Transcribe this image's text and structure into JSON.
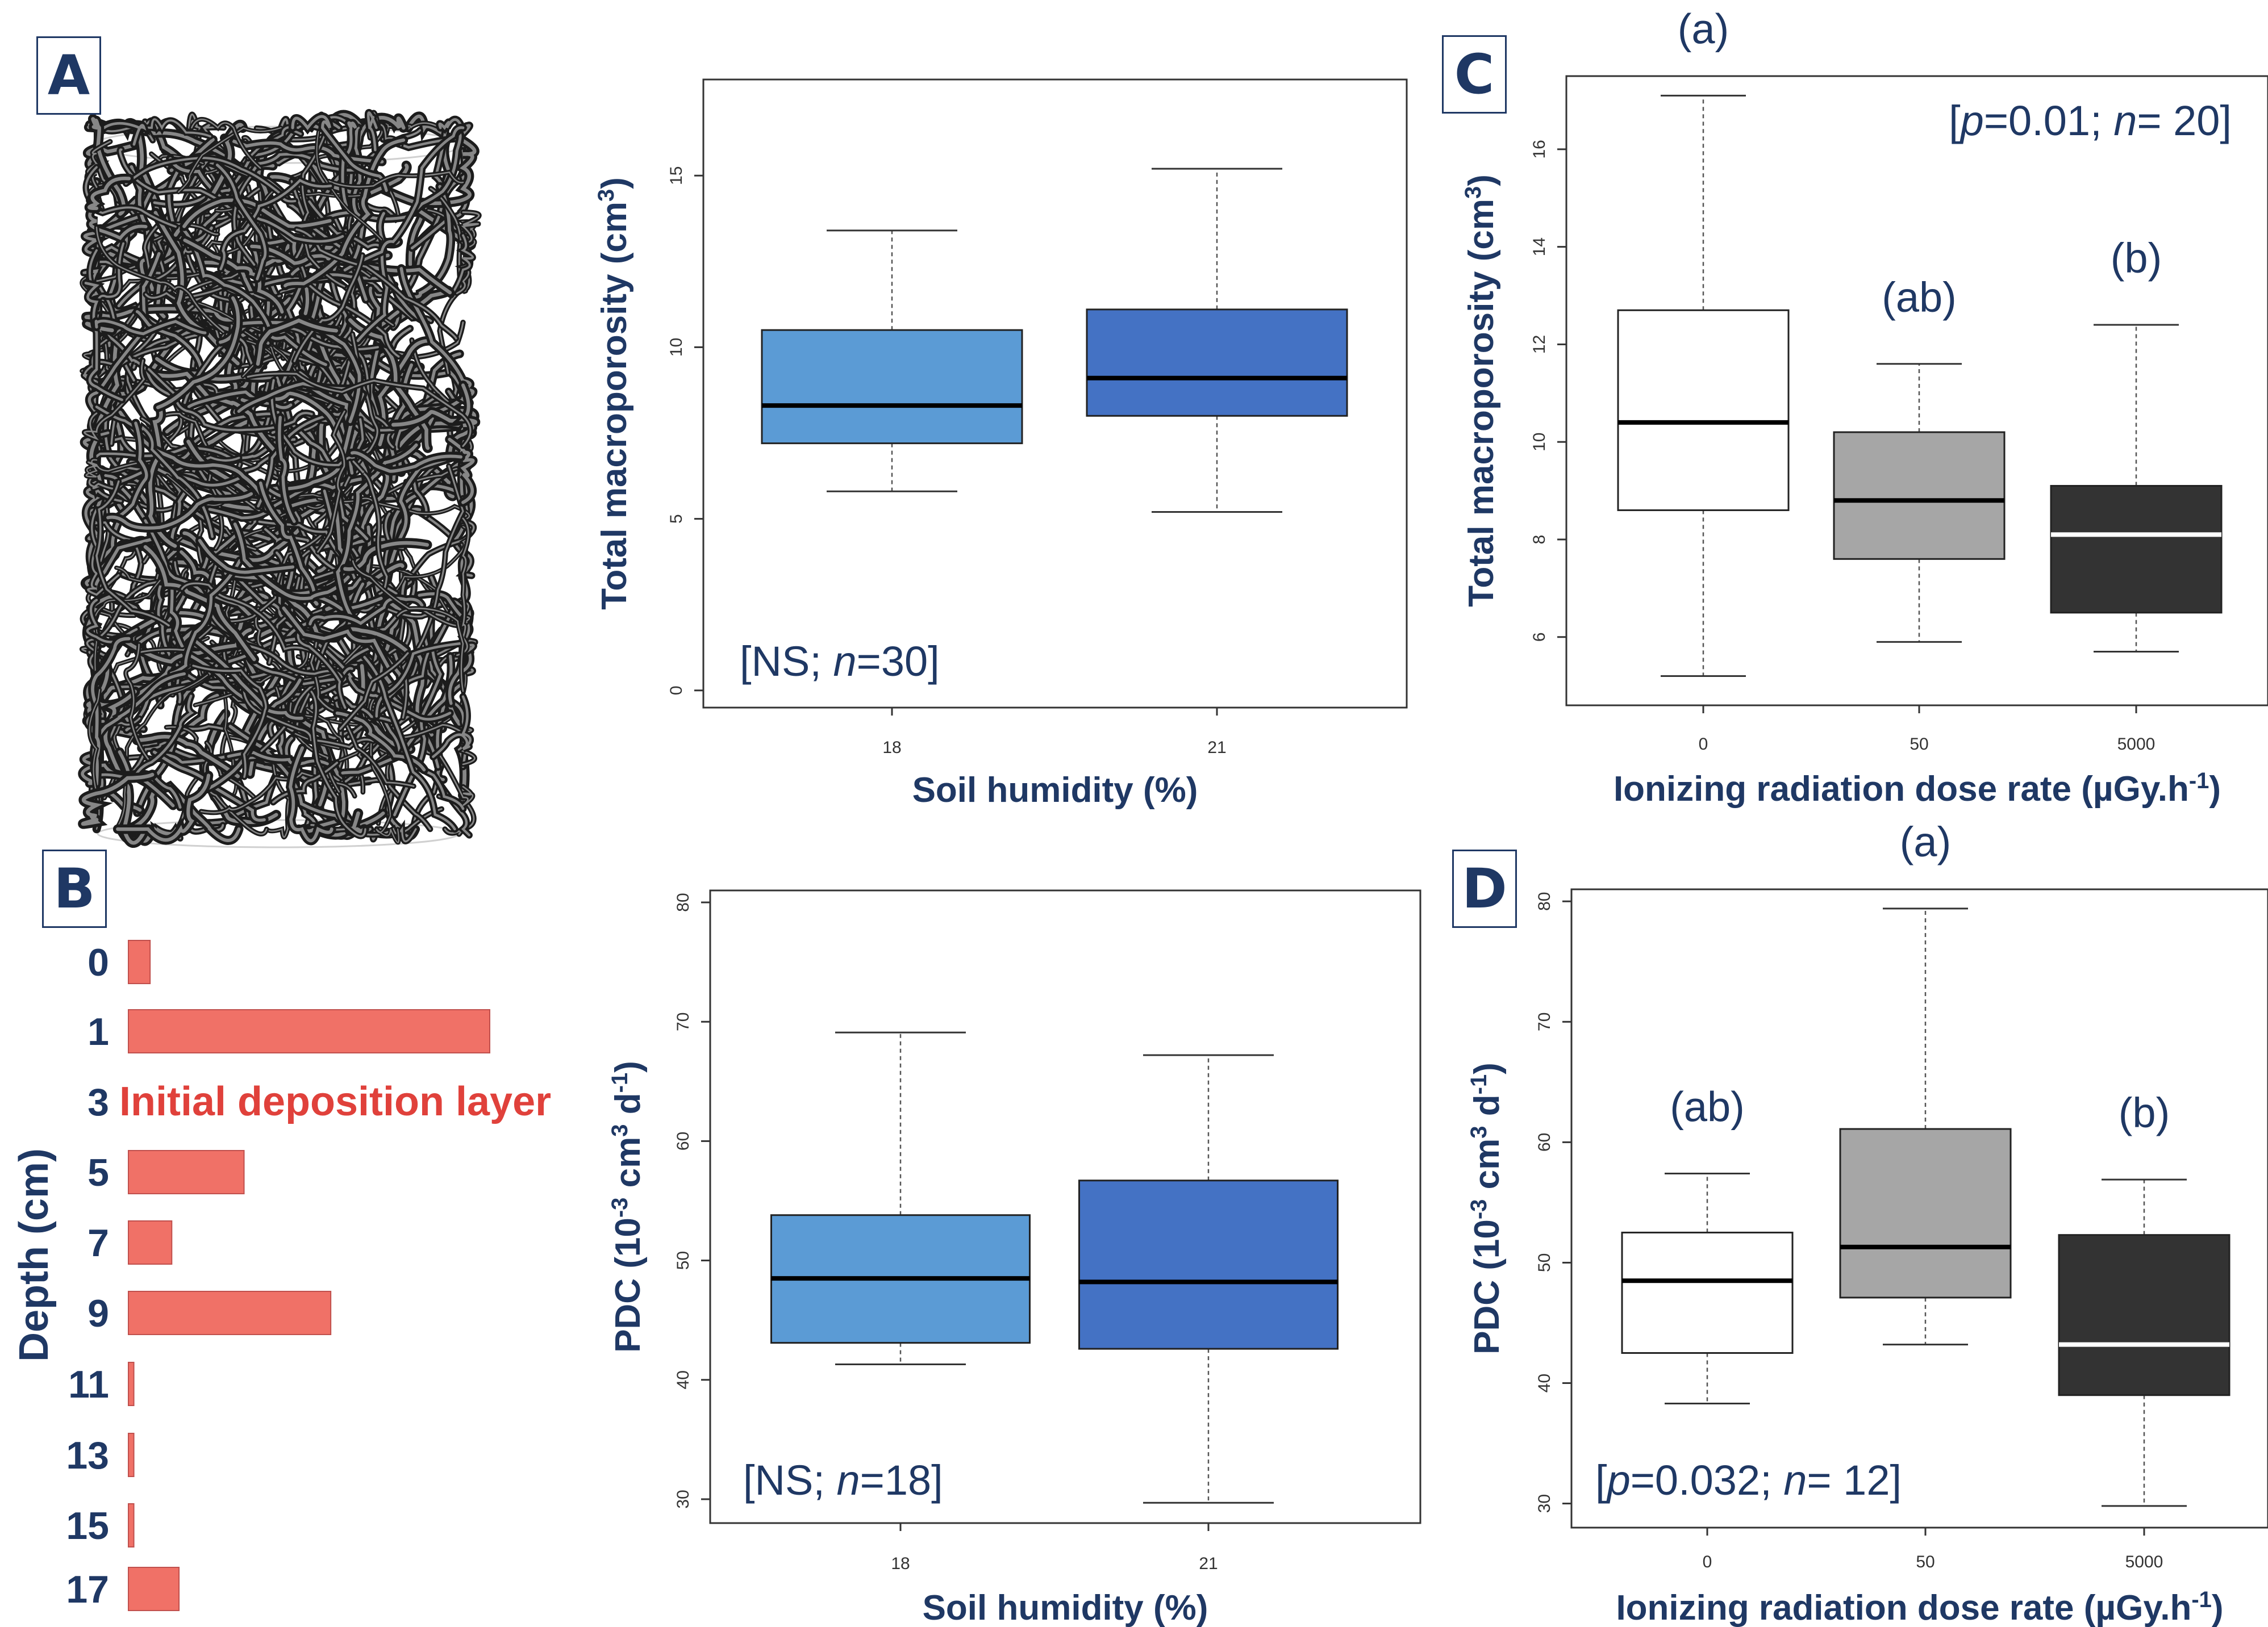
{
  "panel_labels": {
    "a": "A",
    "b": "B",
    "c": "C",
    "d": "D"
  },
  "colors": {
    "navy": "#1f3864",
    "bar_red": "#f07167",
    "deposition_red": "#e0413b",
    "humidity_18": "#5b9bd5",
    "humidity_21": "#4472c4",
    "dose_0": "#ffffff",
    "dose_50": "#a6a6a6",
    "dose_5000": "#333333"
  },
  "chart_data": [
    {
      "id": "depth-profile",
      "type": "bar",
      "orientation": "horizontal",
      "ylabel": "Depth (cm)",
      "categories": [
        "0",
        "1",
        "3",
        "5",
        "7",
        "9",
        "11",
        "13",
        "15",
        "17"
      ],
      "values": [
        0.6,
        10,
        null,
        3.2,
        1.2,
        5.6,
        0.15,
        0.15,
        0.15,
        1.4
      ],
      "annotation": "Initial deposition layer",
      "annotation_category": "3"
    },
    {
      "id": "macroporosity-humidity",
      "type": "box",
      "xlabel": "Soil humidity (%)",
      "ylabel_main": "Total macroporosity (cm",
      "ylabel_sup": "3",
      "ylabel_end": ")",
      "ylim": [
        -0.5,
        17.8
      ],
      "yticks": [
        0,
        5,
        10,
        15
      ],
      "categories": [
        "18",
        "21"
      ],
      "boxes": [
        {
          "label": "18",
          "min": 5.8,
          "q1": 7.2,
          "median": 8.3,
          "q3": 10.5,
          "max": 13.4
        },
        {
          "label": "21",
          "min": 5.2,
          "q1": 8.0,
          "median": 9.1,
          "q3": 11.1,
          "max": 15.2
        }
      ],
      "stat_text": "[NS; n=30]"
    },
    {
      "id": "macroporosity-dose",
      "type": "box",
      "xlabel": "Ionizing radiation dose rate (µGy.h-1)",
      "ylabel_main": "Total macroporosity (cm",
      "ylabel_sup": "3",
      "ylabel_end": ")",
      "ylim": [
        4.6,
        17.5
      ],
      "yticks": [
        6,
        8,
        10,
        12,
        14,
        16
      ],
      "categories": [
        "0",
        "50",
        "5000"
      ],
      "boxes": [
        {
          "label": "0",
          "min": 5.2,
          "q1": 8.6,
          "median": 10.4,
          "q3": 12.7,
          "max": 17.1,
          "letter": "(a)"
        },
        {
          "label": "50",
          "min": 5.9,
          "q1": 7.6,
          "median": 8.8,
          "q3": 10.2,
          "max": 11.6,
          "letter": "(ab)"
        },
        {
          "label": "5000",
          "min": 5.7,
          "q1": 6.5,
          "median": 8.1,
          "q3": 9.1,
          "max": 12.4,
          "letter": "(b)"
        }
      ],
      "stat_text": "[p=0.01; n= 20]"
    },
    {
      "id": "pdc-humidity",
      "type": "box",
      "xlabel": "Soil humidity (%)",
      "ylabel_main": "PDC (10",
      "ylabel_sup": "-3",
      "ylabel_mid": " cm",
      "ylabel_sup2": "3",
      "ylabel_mid2": " d",
      "ylabel_sup3": "-1",
      "ylabel_end": ")",
      "ylim": [
        28,
        81
      ],
      "yticks": [
        30,
        40,
        50,
        60,
        70,
        80
      ],
      "categories": [
        "18",
        "21"
      ],
      "boxes": [
        {
          "label": "18",
          "min": 41.3,
          "q1": 43.1,
          "median": 48.5,
          "q3": 53.8,
          "max": 69.1
        },
        {
          "label": "21",
          "min": 29.7,
          "q1": 42.6,
          "median": 48.2,
          "q3": 56.7,
          "max": 67.2
        }
      ],
      "stat_text": "[NS; n=18]"
    },
    {
      "id": "pdc-dose",
      "type": "box",
      "xlabel": "Ionizing radiation dose rate (µGy.h-1)",
      "ylabel_main": "PDC (10",
      "ylabel_sup": "-3",
      "ylabel_mid": " cm",
      "ylabel_sup2": "3",
      "ylabel_mid2": " d",
      "ylabel_sup3": "-1",
      "ylabel_end": ")",
      "ylim": [
        28,
        81
      ],
      "yticks": [
        30,
        40,
        50,
        60,
        70,
        80
      ],
      "categories": [
        "0",
        "50",
        "5000"
      ],
      "boxes": [
        {
          "label": "0",
          "min": 38.3,
          "q1": 42.5,
          "median": 48.5,
          "q3": 52.5,
          "max": 57.4,
          "letter": "(ab)"
        },
        {
          "label": "50",
          "min": 43.2,
          "q1": 47.1,
          "median": 51.3,
          "q3": 61.1,
          "max": 79.4,
          "letter": "(a)"
        },
        {
          "label": "5000",
          "min": 29.8,
          "q1": 39.0,
          "median": 43.2,
          "q3": 52.3,
          "max": 56.9,
          "letter": "(b)"
        }
      ],
      "stat_text": "[p=0.032; n= 12]"
    }
  ]
}
